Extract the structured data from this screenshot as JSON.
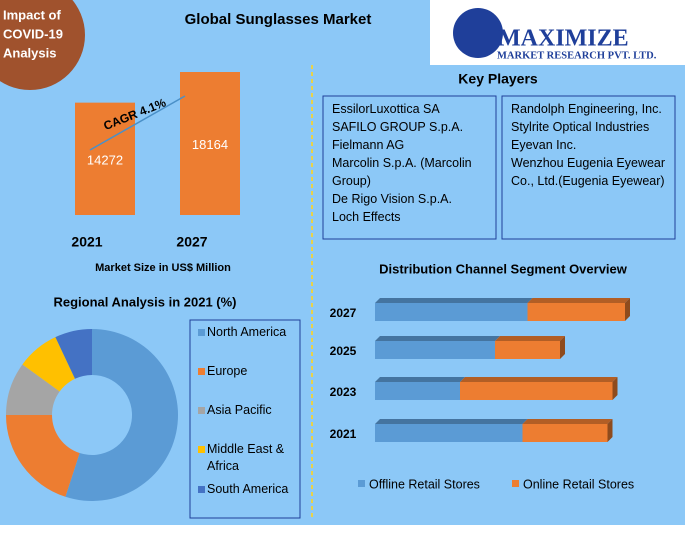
{
  "header": {
    "title": "Global Sunglasses Market"
  },
  "badge": {
    "lines": [
      "Impact of",
      "COVID-19",
      "Analysis"
    ]
  },
  "logo": {
    "name": "MAXIMIZE",
    "tagline": "MARKET RESEARCH PVT. LTD."
  },
  "key_players": {
    "title": "Key Players",
    "columns": [
      [
        "EssilorLuxottica SA",
        "SAFILO GROUP S.p.A.",
        "Fielmann AG",
        "Marcolin S.p.A. (Marcolin Group)",
        "De Rigo Vision S.p.A.",
        "Loch Effects"
      ],
      [
        "Randolph Engineering, Inc.",
        "Stylrite Optical Industries",
        "Eyevan Inc.",
        "Wenzhou Eugenia Eyewear Co., Ltd.(Eugenia Eyewear)"
      ]
    ]
  },
  "chart_data": [
    {
      "type": "bar",
      "categories": [
        "2021",
        "2027"
      ],
      "values": [
        14272,
        18164
      ],
      "color": "#ed7d31",
      "annotation": "CAGR 4.1%",
      "x_label": "Market Size in US$ Million"
    },
    {
      "type": "donut",
      "title": "Regional Analysis in 2021 (%)",
      "categories": [
        "North America",
        "Europe",
        "Asia Pacific",
        "Middle East & Africa",
        "South America"
      ],
      "values": [
        55,
        20,
        10,
        8,
        7
      ],
      "colors": [
        "#5b9bd5",
        "#ed7d31",
        "#a5a5a5",
        "#ffc000",
        "#4472c4"
      ]
    },
    {
      "type": "stacked-hbar",
      "title": "Distribution Channel Segment Overview",
      "categories": [
        "2027",
        "2025",
        "2023",
        "2021"
      ],
      "series": [
        {
          "name": "Offline Retail Stores",
          "color": "#5b9bd5",
          "values": [
            61,
            48,
            34,
            59
          ]
        },
        {
          "name": "Online Retail Stores",
          "color": "#ed7d31",
          "values": [
            39,
            26,
            61,
            34
          ]
        }
      ],
      "legend": "bottom"
    }
  ]
}
